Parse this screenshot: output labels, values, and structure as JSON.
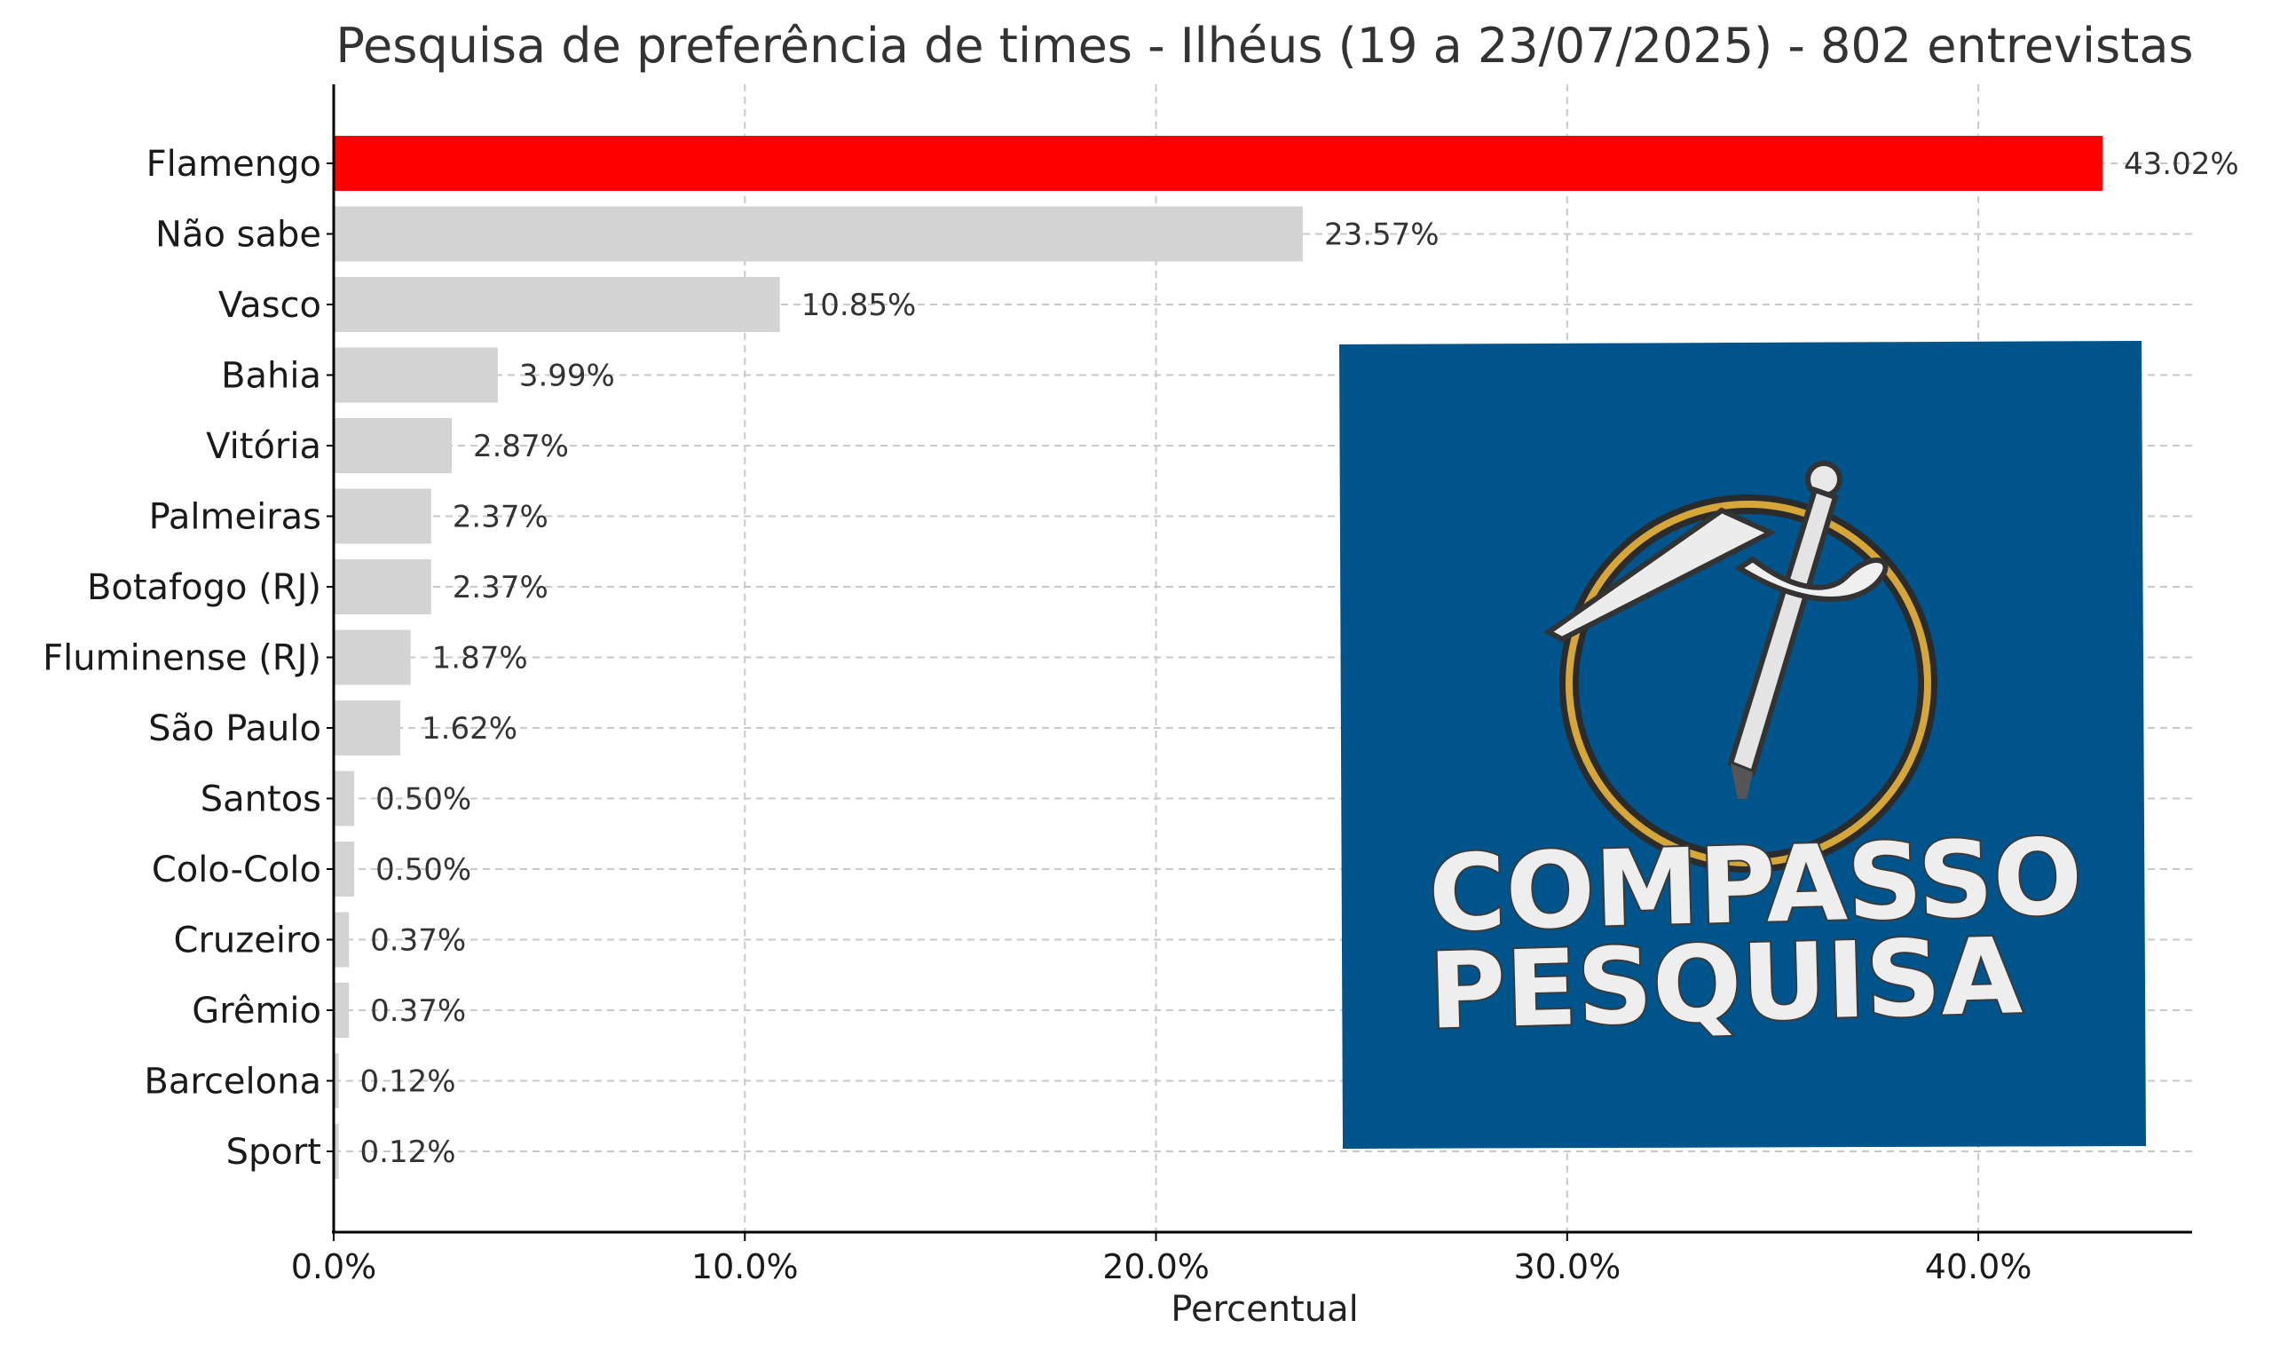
{
  "chart_data": {
    "type": "bar",
    "orientation": "horizontal",
    "title": "Pesquisa de preferência de times - Ilhéus (19 a 23/07/2025) - 802 entrevistas",
    "xlabel": "Percentual",
    "ylabel": "",
    "xlim": [
      0,
      45.2
    ],
    "x_ticks": [
      0,
      10,
      20,
      30,
      40
    ],
    "x_tick_labels": [
      "0.0%",
      "10.0%",
      "20.0%",
      "30.0%",
      "40.0%"
    ],
    "grid": true,
    "categories": [
      "Flamengo",
      "Não sabe",
      "Vasco",
      "Bahia",
      "Vitória",
      "Palmeiras",
      "Botafogo (RJ)",
      "Fluminense (RJ)",
      "São Paulo",
      "Santos",
      "Colo-Colo",
      "Cruzeiro",
      "Grêmio",
      "Barcelona",
      "Sport"
    ],
    "values": [
      43.02,
      23.57,
      10.85,
      3.99,
      2.87,
      2.37,
      2.37,
      1.87,
      1.62,
      0.5,
      0.5,
      0.37,
      0.37,
      0.12,
      0.12
    ],
    "value_labels": [
      "43.02%",
      "23.57%",
      "10.85%",
      "3.99%",
      "2.87%",
      "2.37%",
      "2.37%",
      "1.87%",
      "1.62%",
      "0.50%",
      "0.50%",
      "0.37%",
      "0.37%",
      "0.12%",
      "0.12%"
    ],
    "colors": {
      "highlight": "#ff0000",
      "default": "#d3d3d3",
      "grid": "#c8c8c8",
      "axis": "#000000"
    },
    "highlight_index": 0
  },
  "logo": {
    "line1": "COMPASSO",
    "line2": "PESQUISA",
    "background": "#00548c",
    "icon": "compass-icon"
  }
}
